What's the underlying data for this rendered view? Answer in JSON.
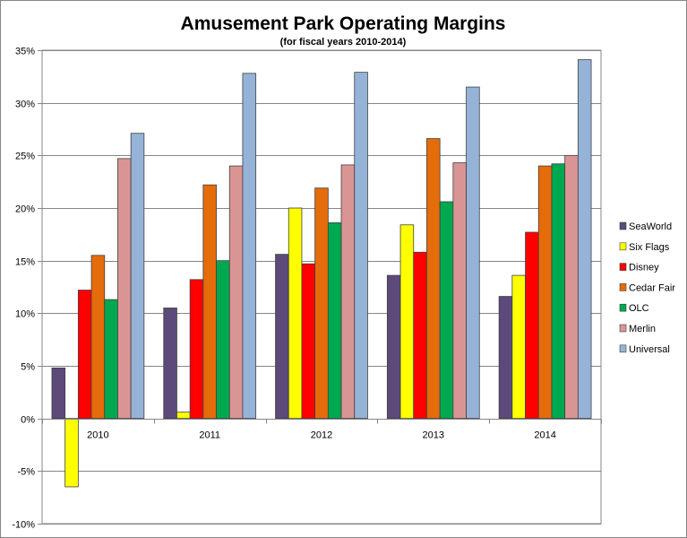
{
  "chart_data": {
    "type": "bar",
    "title": "Amusement Park Operating Margins",
    "subtitle": "(for fiscal  years 2010-2014)",
    "xlabel": "",
    "ylabel": "",
    "ylim": [
      -10,
      35
    ],
    "yticks": [
      -10,
      -5,
      0,
      5,
      10,
      15,
      20,
      25,
      30,
      35
    ],
    "ytick_suffix": "%",
    "grid": true,
    "legend_position": "right",
    "categories": [
      "2010",
      "2011",
      "2012",
      "2013",
      "2014"
    ],
    "series": [
      {
        "name": "SeaWorld",
        "color": "#5b4a7a",
        "values": [
          4.8,
          10.5,
          15.6,
          13.6,
          11.6
        ]
      },
      {
        "name": "Six Flags",
        "color": "#ffff00",
        "values": [
          -6.5,
          0.6,
          20.0,
          18.4,
          13.6
        ]
      },
      {
        "name": "Disney",
        "color": "#ff0000",
        "values": [
          12.2,
          13.2,
          14.7,
          15.8,
          17.7
        ]
      },
      {
        "name": "Cedar Fair",
        "color": "#e46c0a",
        "values": [
          15.5,
          22.2,
          21.9,
          26.6,
          24.0
        ]
      },
      {
        "name": "OLC",
        "color": "#00a94f",
        "values": [
          11.3,
          15.0,
          18.6,
          20.6,
          24.2
        ]
      },
      {
        "name": "Merlin",
        "color": "#d99594",
        "values": [
          24.7,
          24.0,
          24.1,
          24.3,
          25.0
        ]
      },
      {
        "name": "Universal",
        "color": "#95b3d7",
        "values": [
          27.1,
          32.8,
          32.9,
          31.5,
          34.1
        ]
      }
    ]
  }
}
